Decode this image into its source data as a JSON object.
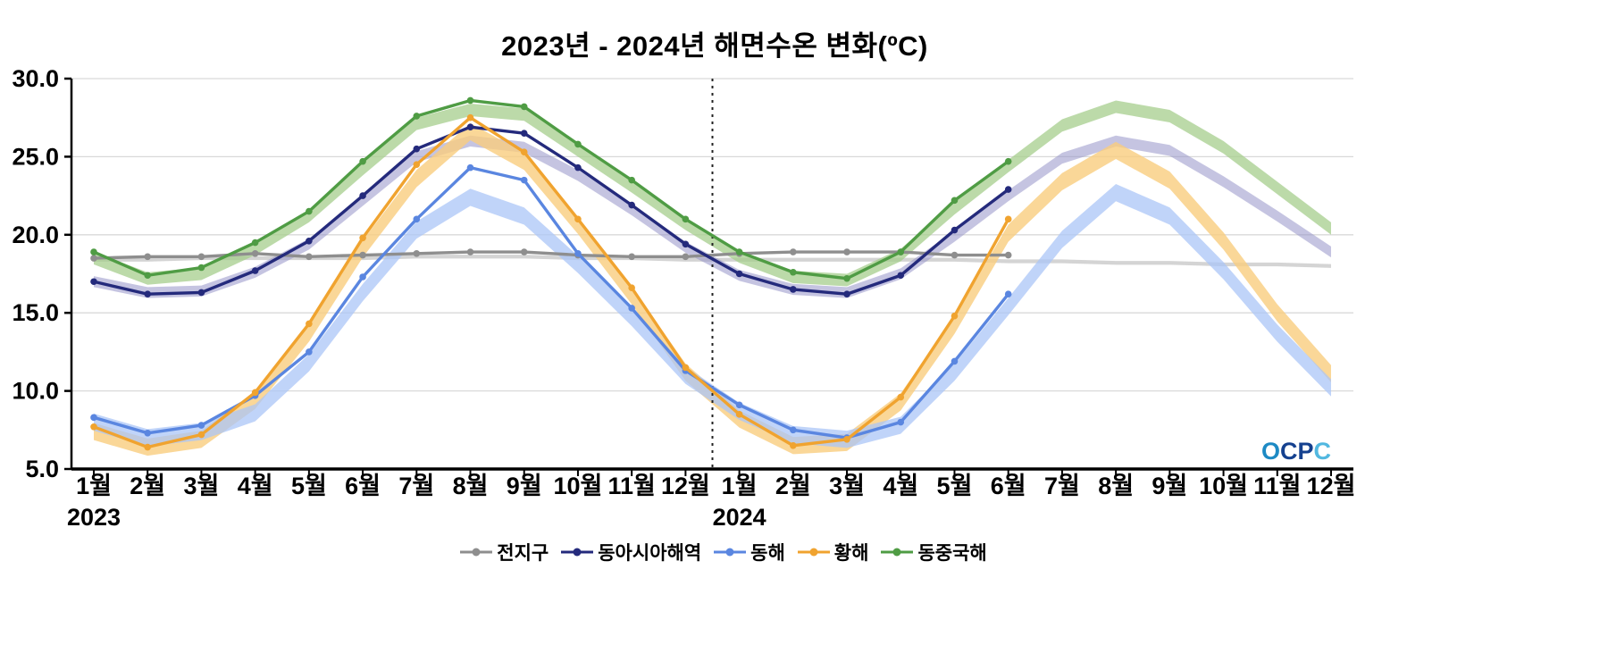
{
  "chart_data": {
    "type": "line",
    "title": "2023년 - 2024년 해면수온 변화(ºC)",
    "ylim": [
      5.0,
      30.0
    ],
    "yticks": [
      5,
      10,
      15,
      20,
      25,
      30
    ],
    "ytick_labels": [
      "5.0",
      "10.0",
      "15.0",
      "20.0",
      "25.0",
      "30.0"
    ],
    "x_labels": [
      "1월",
      "2월",
      "3월",
      "4월",
      "5월",
      "6월",
      "7월",
      "8월",
      "9월",
      "10월",
      "11월",
      "12월",
      "1월",
      "2월",
      "3월",
      "4월",
      "5월",
      "6월",
      "7월",
      "8월",
      "9월",
      "10월",
      "11월",
      "12월"
    ],
    "year_labels": [
      {
        "label": "2023",
        "index": 0
      },
      {
        "label": "2024",
        "index": 12
      }
    ],
    "divider_index": 11.5,
    "grid": true,
    "legend_position": "bottom",
    "series": [
      {
        "name": "전지구",
        "key": "global",
        "color": "#8e8e8e",
        "values": [
          18.5,
          18.6,
          18.6,
          18.8,
          18.6,
          18.7,
          18.8,
          18.9,
          18.9,
          18.7,
          18.6,
          18.6,
          18.8,
          18.9,
          18.9,
          18.9,
          18.7,
          18.7,
          null,
          null,
          null,
          null,
          null,
          null
        ],
        "band": {
          "color": "#cfcfcf",
          "opacity": 0.9,
          "half": 0.12,
          "center": [
            18.4,
            18.4,
            18.5,
            18.5,
            18.5,
            18.5,
            18.6,
            18.6,
            18.6,
            18.5,
            18.5,
            18.4,
            18.4,
            18.4,
            18.4,
            18.4,
            18.4,
            18.3,
            18.3,
            18.2,
            18.2,
            18.1,
            18.1,
            18.0
          ]
        }
      },
      {
        "name": "동아시아해역",
        "key": "east-asia-seas",
        "color": "#242a7c",
        "values": [
          17.0,
          16.2,
          16.3,
          17.7,
          19.6,
          22.5,
          25.5,
          26.9,
          26.5,
          24.3,
          21.9,
          19.4,
          17.5,
          16.5,
          16.2,
          17.4,
          20.3,
          22.9,
          null,
          null,
          null,
          null,
          null,
          null
        ],
        "band": {
          "color": "#9693c8",
          "opacity": 0.55,
          "half": 0.35,
          "center": [
            17.0,
            16.3,
            16.4,
            17.6,
            19.4,
            22.2,
            25.0,
            26.0,
            25.6,
            23.8,
            21.6,
            19.2,
            17.4,
            16.5,
            16.3,
            17.5,
            19.9,
            22.5,
            24.9,
            26.0,
            25.4,
            23.4,
            21.2,
            18.9
          ]
        }
      },
      {
        "name": "동해",
        "key": "east-sea",
        "color": "#5a86e0",
        "values": [
          8.3,
          7.3,
          7.8,
          9.7,
          12.5,
          17.3,
          21.0,
          24.3,
          23.5,
          18.8,
          15.3,
          11.3,
          9.1,
          7.5,
          7.0,
          8.0,
          11.9,
          16.2,
          null,
          null,
          null,
          null,
          null,
          null
        ],
        "band": {
          "color": "#abc6f7",
          "opacity": 0.75,
          "half": 0.55,
          "center": [
            8.0,
            7.0,
            7.4,
            8.6,
            11.8,
            16.3,
            20.3,
            22.4,
            21.2,
            18.1,
            14.7,
            11.0,
            8.7,
            7.2,
            6.9,
            7.8,
            11.2,
            15.4,
            19.7,
            22.7,
            21.2,
            17.7,
            13.7,
            10.2
          ]
        }
      },
      {
        "name": "황해",
        "key": "yellow-sea",
        "color": "#f0a32f",
        "values": [
          7.7,
          6.4,
          7.2,
          9.9,
          14.3,
          19.8,
          24.5,
          27.5,
          25.3,
          21.0,
          16.6,
          11.5,
          8.5,
          6.5,
          6.9,
          9.6,
          14.8,
          21.0,
          null,
          null,
          null,
          null,
          null,
          null
        ],
        "band": {
          "color": "#f9cd7e",
          "opacity": 0.8,
          "half": 0.55,
          "center": [
            7.4,
            6.4,
            6.9,
            9.4,
            13.7,
            19.1,
            23.6,
            26.6,
            24.7,
            20.6,
            16.1,
            11.2,
            8.2,
            6.5,
            6.7,
            9.3,
            14.2,
            20.1,
            23.4,
            25.4,
            23.5,
            19.6,
            15.0,
            11.1
          ]
        }
      },
      {
        "name": "동중국해",
        "key": "east-china-sea",
        "color": "#4f9c44",
        "values": [
          18.9,
          17.4,
          17.9,
          19.5,
          21.5,
          24.7,
          27.6,
          28.6,
          28.2,
          25.8,
          23.5,
          21.0,
          18.9,
          17.6,
          17.2,
          18.9,
          22.2,
          24.7,
          null,
          null,
          null,
          null,
          null,
          null
        ],
        "band": {
          "color": "#a5cd8c",
          "opacity": 0.75,
          "half": 0.4,
          "center": [
            18.5,
            17.2,
            17.5,
            19.1,
            21.2,
            24.2,
            27.1,
            28.0,
            27.7,
            25.4,
            23.1,
            20.7,
            18.6,
            17.3,
            17.1,
            18.7,
            21.7,
            24.4,
            27.0,
            28.2,
            27.6,
            25.6,
            23.0,
            20.4
          ]
        }
      }
    ]
  },
  "logo": {
    "text": "OCPC",
    "letters": [
      {
        "ch": "O",
        "color": "#1d8ac4"
      },
      {
        "ch": "C",
        "color": "#15418f"
      },
      {
        "ch": "P",
        "color": "#15418f"
      },
      {
        "ch": "C",
        "color": "#52b8e0"
      }
    ]
  }
}
